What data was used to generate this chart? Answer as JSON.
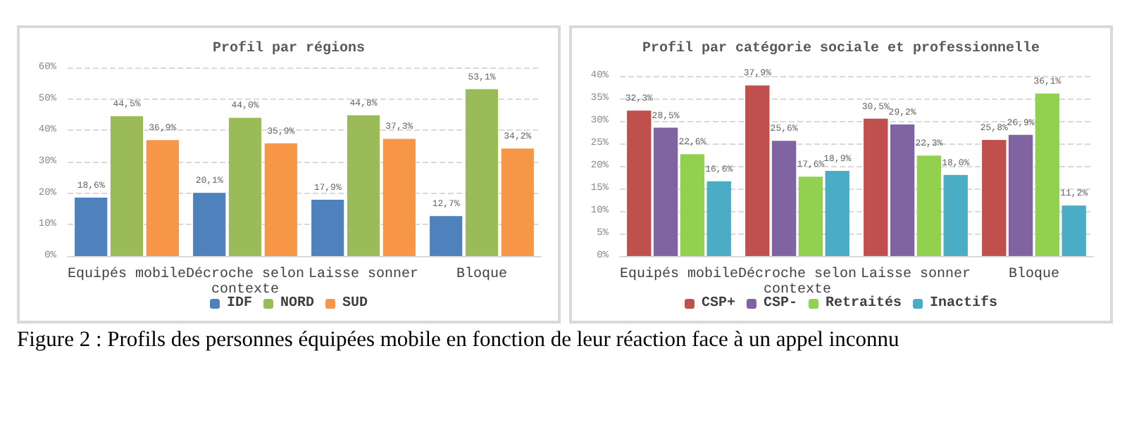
{
  "chart_data": [
    {
      "type": "bar",
      "title": "Profil par régions",
      "categories": [
        "Equipés mobile",
        "Décroche selon contexte",
        "Laisse sonner",
        "Bloque"
      ],
      "series": [
        {
          "name": "IDF",
          "color": "#4f81bd",
          "values": [
            18.6,
            20.1,
            17.9,
            12.7
          ],
          "value_labels": [
            "18,6%",
            "20,1%",
            "17,9%",
            "12,7%"
          ]
        },
        {
          "name": "NORD",
          "color": "#9bbb59",
          "values": [
            44.5,
            44.0,
            44.8,
            53.1
          ],
          "value_labels": [
            "44,5%",
            "44,0%",
            "44,8%",
            "53,1%"
          ]
        },
        {
          "name": "SUD",
          "color": "#f79646",
          "values": [
            36.9,
            35.9,
            37.3,
            34.2
          ],
          "value_labels": [
            "36,9%",
            "35,9%",
            "37,3%",
            "34,2%"
          ]
        }
      ],
      "ylim": [
        0,
        60
      ],
      "yticks": [
        {
          "value": 0,
          "label": "0%"
        },
        {
          "value": 10,
          "label": "10%"
        },
        {
          "value": 20,
          "label": "20%"
        },
        {
          "value": 30,
          "label": "30%"
        },
        {
          "value": 40,
          "label": "40%"
        },
        {
          "value": 50,
          "label": "50%"
        },
        {
          "value": 60,
          "label": "60%"
        }
      ],
      "grid": "y",
      "legend": "bottom",
      "annotations": [
        "Figure 2 : Profils des personnes équipées mobile en fonction de leur réaction face à un appel inconnu"
      ]
    },
    {
      "type": "bar",
      "title": "Profil par catégorie sociale et professionnelle",
      "categories": [
        "Equipés mobile",
        "Décroche selon contexte",
        "Laisse sonner",
        "Bloque"
      ],
      "series": [
        {
          "name": "CSP+",
          "color": "#c0504d",
          "values": [
            32.3,
            37.9,
            30.5,
            25.8
          ],
          "value_labels": [
            "32,3%",
            "37,9%",
            "30,5%",
            "25,8%"
          ]
        },
        {
          "name": "CSP-",
          "color": "#8064a2",
          "values": [
            28.5,
            25.6,
            29.2,
            26.9
          ],
          "value_labels": [
            "28,5%",
            "25,6%",
            "29,2%",
            "26,9%"
          ]
        },
        {
          "name": "Retraités",
          "color": "#92d050",
          "values": [
            22.6,
            17.6,
            22.3,
            36.1
          ],
          "value_labels": [
            "22,6%",
            "17,6%",
            "22,3%",
            "36,1%"
          ]
        },
        {
          "name": "Inactifs",
          "color": "#4bacc6",
          "values": [
            16.6,
            18.9,
            18.0,
            11.2
          ],
          "value_labels": [
            "16,6%",
            "18,9%",
            "18,0%",
            "11,2%"
          ]
        }
      ],
      "ylim": [
        0,
        40
      ],
      "yticks": [
        {
          "value": 0,
          "label": "0%"
        },
        {
          "value": 5,
          "label": "5%"
        },
        {
          "value": 10,
          "label": "10%"
        },
        {
          "value": 15,
          "label": "15%"
        },
        {
          "value": 20,
          "label": "20%"
        },
        {
          "value": 25,
          "label": "25%"
        },
        {
          "value": 30,
          "label": "30%"
        },
        {
          "value": 35,
          "label": "35%"
        },
        {
          "value": 40,
          "label": "40%"
        }
      ],
      "grid": "y",
      "legend": "bottom"
    }
  ]
}
